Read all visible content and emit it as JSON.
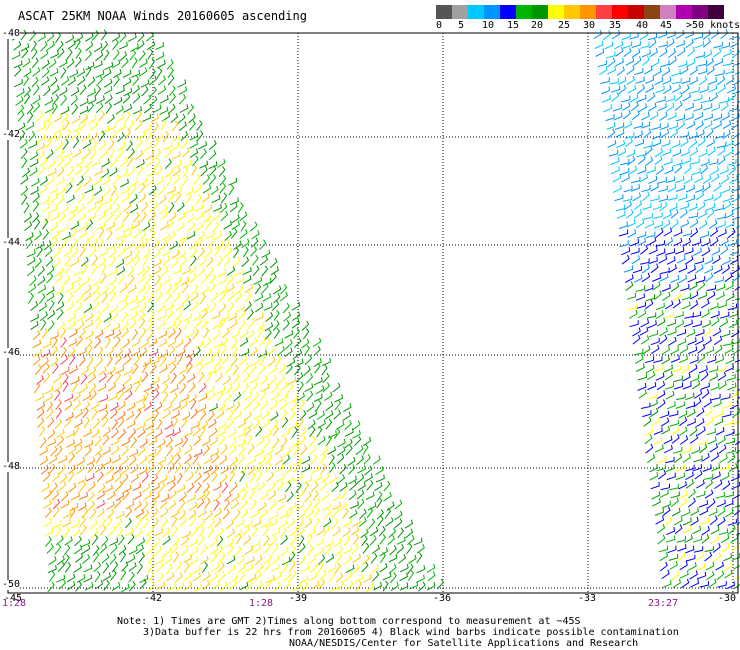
{
  "title": "ASCAT 25KM NOAA Winds 20160605 ascending",
  "color_scale": {
    "colors": [
      "#555555",
      "#a0a0a0",
      "#00c8ff",
      "#0096ff",
      "#0000ff",
      "#00b400",
      "#009600",
      "#ffff00",
      "#ffc800",
      "#ff9600",
      "#ff4040",
      "#ff0000",
      "#c80000",
      "#8b4513",
      "#d080c0",
      "#b000b0",
      "#800080",
      "#400040"
    ],
    "labels": [
      "0",
      "5",
      "10",
      "15",
      "20",
      "25",
      "30",
      "35",
      "40",
      "45",
      ">50 knots"
    ]
  },
  "latitude_labels": [
    "-40",
    "-42",
    "-44",
    "-46",
    "-48",
    "-50"
  ],
  "longitude_labels": [
    "-45",
    "-42",
    "-39",
    "-36",
    "-33",
    "-30"
  ],
  "time_labels": [
    "1:28",
    "1:28",
    "23:27"
  ],
  "notes": [
    "Note: 1) Times are GMT 2)Times along bottom correspond to measurement at −45S",
    "3)Data buffer is 22 hrs from 20160605 4) Black wind barbs indicate possible contamination",
    "NOAA/NESDIS/Center for Satellite Applications and Research"
  ],
  "map_data": {
    "lat_range": [
      -50,
      -40
    ],
    "lon_range": [
      -45,
      -30
    ],
    "swaths": [
      {
        "name": "west",
        "time": "1:28",
        "dominant_speed_knots": "20-30"
      },
      {
        "name": "east",
        "time": "23:27",
        "dominant_speed_knots": "5-20"
      }
    ]
  }
}
